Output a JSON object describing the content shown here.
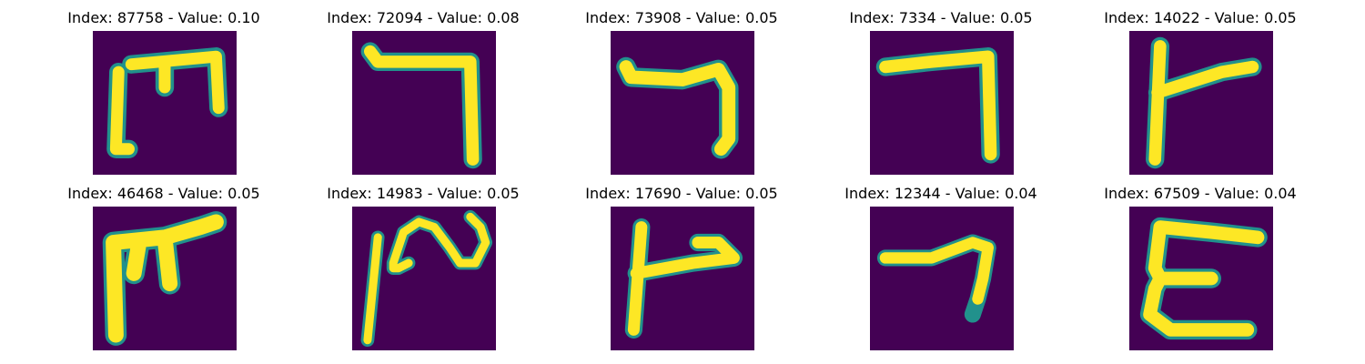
{
  "chart_data": {
    "type": "image-grid",
    "colors": {
      "background": "#440154",
      "mid": "#21918c",
      "foreground": "#fde725"
    },
    "images": [
      {
        "title": "Index: 87758 - Value: 0.10",
        "index": 87758,
        "value": 0.1
      },
      {
        "title": "Index: 72094 - Value: 0.08",
        "index": 72094,
        "value": 0.08
      },
      {
        "title": "Index: 73908 - Value: 0.05",
        "index": 73908,
        "value": 0.05
      },
      {
        "title": "Index: 7334 - Value: 0.05",
        "index": 7334,
        "value": 0.05
      },
      {
        "title": "Index: 14022 - Value: 0.05",
        "index": 14022,
        "value": 0.05
      },
      {
        "title": "Index: 46468 - Value: 0.05",
        "index": 46468,
        "value": 0.05
      },
      {
        "title": "Index: 14983 - Value: 0.05",
        "index": 14983,
        "value": 0.05
      },
      {
        "title": "Index: 17690 - Value: 0.05",
        "index": 17690,
        "value": 0.05
      },
      {
        "title": "Index: 12344 - Value: 0.04",
        "index": 12344,
        "value": 0.04
      },
      {
        "title": "Index: 67509 - Value: 0.04",
        "index": 67509,
        "value": 0.04
      }
    ]
  }
}
